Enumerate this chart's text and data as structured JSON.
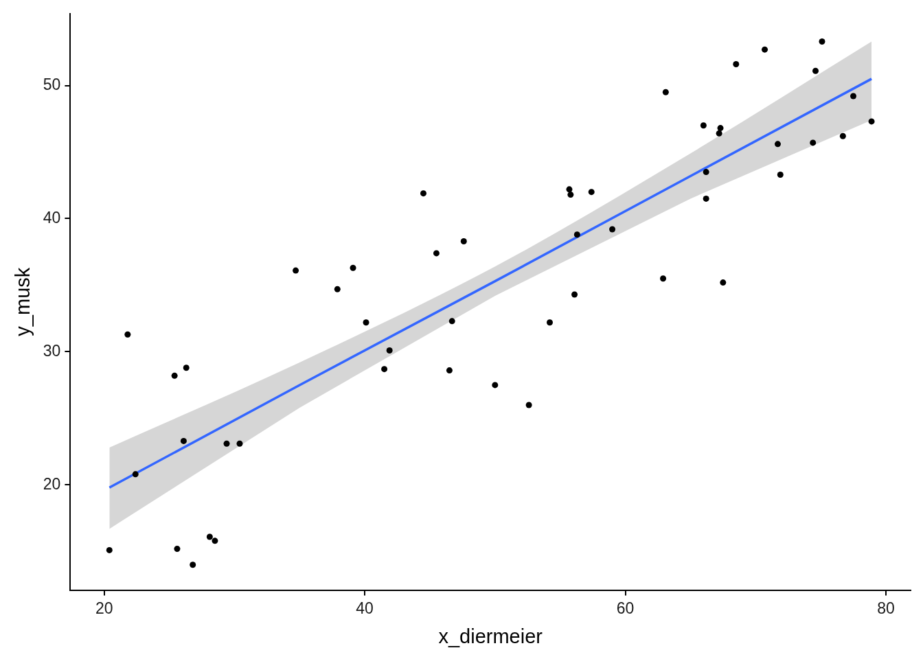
{
  "chart_data": {
    "type": "scatter",
    "xlabel": "x_diermeier",
    "ylabel": "y_musk",
    "xlim": [
      17.4,
      81.9
    ],
    "ylim": [
      12.1,
      55.4
    ],
    "xticks": [
      20,
      40,
      60,
      80
    ],
    "yticks": [
      20,
      30,
      40,
      50
    ],
    "grid": false,
    "series": [
      {
        "color": "#000000",
        "marker": "circle",
        "x": [
          20.4,
          21.8,
          22.4,
          25.4,
          25.6,
          26.1,
          26.3,
          26.8,
          28.1,
          28.5,
          29.4,
          30.4,
          34.7,
          37.9,
          39.1,
          40.1,
          41.5,
          41.9,
          44.5,
          45.5,
          46.5,
          46.7,
          47.6,
          50.0,
          52.6,
          54.2,
          55.7,
          55.8,
          56.1,
          56.3,
          57.4,
          59.0,
          62.9,
          63.1,
          66.0,
          66.2,
          66.2,
          67.2,
          67.3,
          67.5,
          68.5,
          70.7,
          71.7,
          71.9,
          74.4,
          74.6,
          75.1,
          76.7,
          77.5,
          78.9
        ],
        "values": [
          15.1,
          31.3,
          20.8,
          28.2,
          15.2,
          23.3,
          28.8,
          14.0,
          16.1,
          15.8,
          23.1,
          23.1,
          36.1,
          34.7,
          36.3,
          32.2,
          28.7,
          30.1,
          41.9,
          37.4,
          28.6,
          32.3,
          38.3,
          27.5,
          26.0,
          32.2,
          42.2,
          41.8,
          34.3,
          38.8,
          42.0,
          39.2,
          35.5,
          49.5,
          47.0,
          43.5,
          41.5,
          46.4,
          46.8,
          35.2,
          51.6,
          52.7,
          45.6,
          43.3,
          45.7,
          51.1,
          53.3,
          46.2,
          49.2,
          47.3
        ]
      },
      {
        "type": "line",
        "marker": "none",
        "color": "#3366ff",
        "x": [
          20.4,
          35,
          50,
          65,
          78.9
        ],
        "values": [
          19.8,
          27.5,
          35.3,
          43.2,
          50.5
        ],
        "lower": [
          16.7,
          25.8,
          34.2,
          41.5,
          47.4
        ],
        "upper": [
          22.8,
          29.2,
          36.4,
          44.9,
          53.3
        ]
      }
    ]
  }
}
